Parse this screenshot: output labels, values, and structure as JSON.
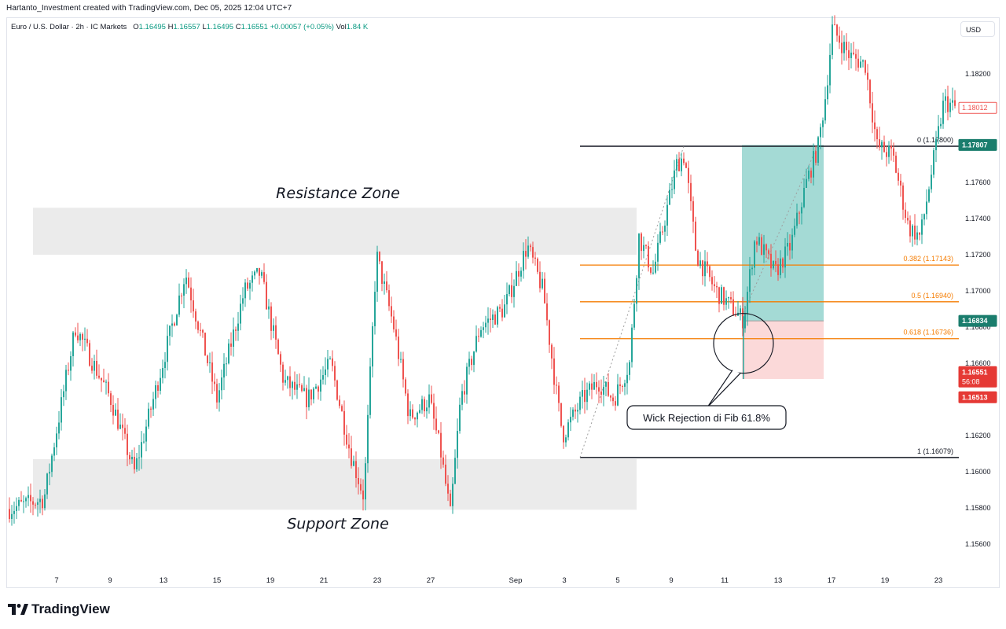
{
  "attribution": "Hartanto_Investment created with TradingView.com, Dec 05, 2025 12:04 UTC+7",
  "legend": {
    "symbol": "Euro / U.S. Dollar · 2h · IC Markets",
    "o_label": "O",
    "o": "1.16495",
    "h_label": "H",
    "h": "1.16557",
    "l_label": "L",
    "l": "1.16495",
    "c_label": "C",
    "c": "1.16551",
    "change": "+0.00057 (+0.05%)",
    "vol_label": "Vol",
    "vol": "1.84 K"
  },
  "currency_button": "USD",
  "brand": "TradingView",
  "chart_data": {
    "type": "candlestick",
    "y_axis": {
      "ticks": [
        "1.18200",
        "1.18000",
        "1.17800",
        "1.17600",
        "1.17400",
        "1.17200",
        "1.17000",
        "1.16800",
        "1.16600",
        "1.16400",
        "1.16200",
        "1.16000",
        "1.15800",
        "1.15600"
      ],
      "range": [
        1.155,
        1.1845
      ]
    },
    "x_axis": {
      "ticks": [
        "7",
        "9",
        "13",
        "15",
        "19",
        "21",
        "23",
        "27",
        "Sep",
        "3",
        "5",
        "9",
        "11",
        "13",
        "17",
        "19",
        "23"
      ]
    },
    "series": [
      {
        "name": "EURUSD",
        "points": [
          [
            0,
            1.1578
          ],
          [
            55,
            1.1585
          ],
          [
            95,
            1.168
          ],
          [
            140,
            1.164
          ],
          [
            170,
            1.16
          ],
          [
            200,
            1.165
          ],
          [
            235,
            1.171
          ],
          [
            275,
            1.164
          ],
          [
            310,
            1.17
          ],
          [
            330,
            1.171
          ],
          [
            360,
            1.165
          ],
          [
            390,
            1.164
          ],
          [
            420,
            1.166
          ],
          [
            445,
            1.161
          ],
          [
            462,
            1.1586
          ],
          [
            478,
            1.172
          ],
          [
            500,
            1.168
          ],
          [
            520,
            1.163
          ],
          [
            545,
            1.164
          ],
          [
            560,
            1.161
          ],
          [
            572,
            1.1576
          ],
          [
            585,
            1.164
          ],
          [
            610,
            1.168
          ],
          [
            640,
            1.169
          ],
          [
            670,
            1.1725
          ],
          [
            690,
            1.17
          ],
          [
            708,
            1.164
          ],
          [
            715,
            1.162
          ],
          [
            740,
            1.164
          ],
          [
            760,
            1.165
          ],
          [
            780,
            1.164
          ],
          [
            800,
            1.166
          ],
          [
            812,
            1.173
          ],
          [
            830,
            1.171
          ],
          [
            860,
            1.177
          ],
          [
            870,
            1.1775
          ],
          [
            885,
            1.172
          ],
          [
            910,
            1.17
          ],
          [
            945,
            1.1684
          ],
          [
            960,
            1.173
          ],
          [
            985,
            1.171
          ],
          [
            1005,
            1.1725
          ],
          [
            1025,
            1.176
          ],
          [
            1040,
            1.178
          ],
          [
            1050,
            1.181
          ],
          [
            1058,
            1.1845
          ],
          [
            1080,
            1.183
          ],
          [
            1100,
            1.1825
          ],
          [
            1115,
            1.178
          ],
          [
            1135,
            1.1775
          ],
          [
            1155,
            1.1735
          ],
          [
            1170,
            1.173
          ],
          [
            1190,
            1.178
          ],
          [
            1200,
            1.1805
          ],
          [
            1215,
            1.1801
          ]
        ]
      }
    ],
    "fibonacci": [
      {
        "label": "0 (1.17800)",
        "value": 1.178,
        "color": "#131722"
      },
      {
        "label": "0.382 (1.17143)",
        "value": 1.17143,
        "color": "#f57c00"
      },
      {
        "label": "0.5 (1.16940)",
        "value": 1.1694,
        "color": "#f57c00"
      },
      {
        "label": "0.618 (1.16736)",
        "value": 1.16736,
        "color": "#f57c00"
      },
      {
        "label": "1 (1.16079)",
        "value": 1.16079,
        "color": "#131722"
      }
    ],
    "zones": [
      {
        "label": "Resistance Zone",
        "top": 1.1746,
        "bottom": 1.172
      },
      {
        "label": "Support Zone",
        "top": 1.1607,
        "bottom": 1.1579
      }
    ],
    "position": {
      "entry": 1.16834,
      "target": 1.17807,
      "stop": 1.16513
    },
    "price_tags": [
      {
        "value": "1.18012",
        "style": "outline-red"
      },
      {
        "value": "1.17807",
        "style": "fill-green"
      },
      {
        "value": "1.16834",
        "style": "fill-green"
      },
      {
        "value": "1.16551",
        "sub": "56:08",
        "style": "fill-red"
      },
      {
        "value": "1.16513",
        "style": "fill-red"
      }
    ],
    "annotation": "Wick Rejection di Fib 61.8%",
    "up_color": "#26a69a",
    "down_color": "#ef5350"
  }
}
